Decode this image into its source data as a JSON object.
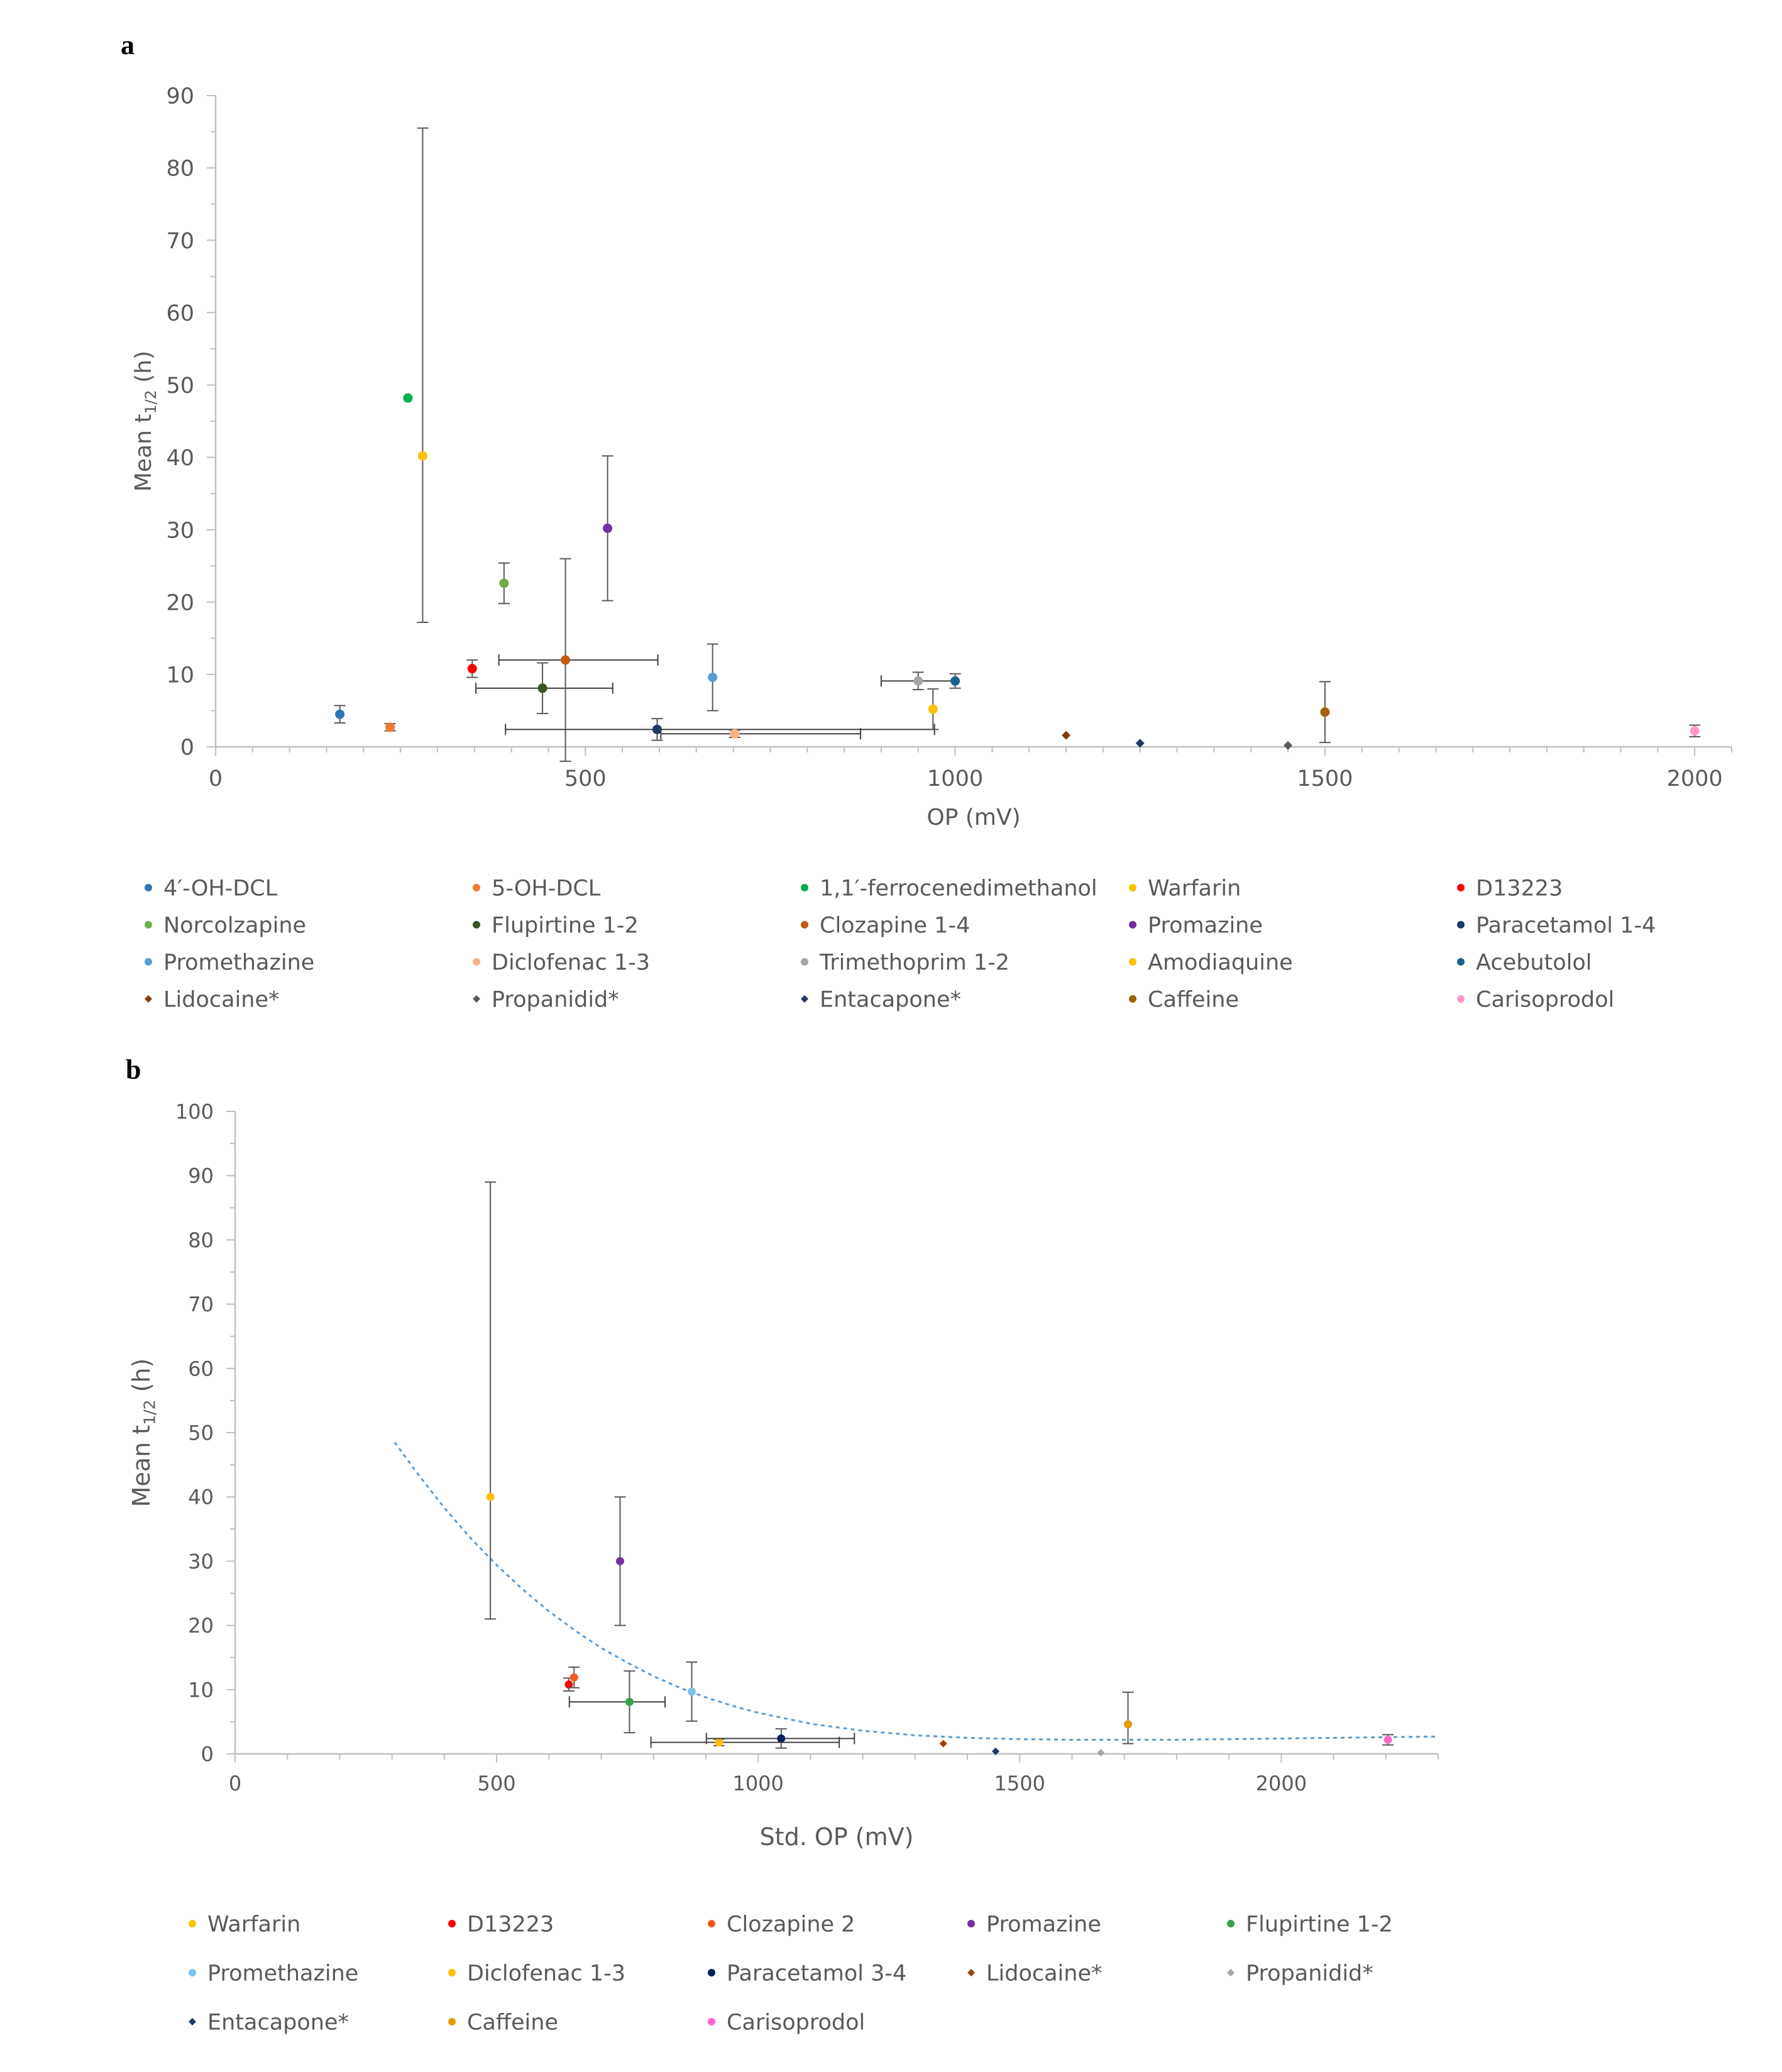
{
  "chart_data": [
    {
      "type": "scatter",
      "panel_label": "a",
      "title": "",
      "xlabel": "OP (mV)",
      "ylabel_main": "Mean t",
      "ylabel_sub": "1/2",
      "ylabel_unit": " (h)",
      "xlim": [
        0,
        2050
      ],
      "ylim": [
        0,
        90
      ],
      "xticks": [
        0,
        500,
        1000,
        1500,
        2000
      ],
      "xtick_labels": [
        "0",
        "500",
        "1000",
        "1500",
        "2000"
      ],
      "yticks": [
        0,
        10,
        20,
        30,
        40,
        50,
        60,
        70,
        80,
        90
      ],
      "ytick_labels": [
        "0",
        "10",
        "20",
        "30",
        "40",
        "50",
        "60",
        "70",
        "80",
        "90"
      ],
      "grid": false,
      "legend_position": "bottom",
      "series": [
        {
          "name": "4′-OH-DCL",
          "color": "#2e75b6",
          "marker": "circle",
          "x": 168,
          "y": 4.5,
          "yerr": 1.2
        },
        {
          "name": "5-OH-DCL",
          "color": "#ed7d31",
          "marker": "circle",
          "x": 236,
          "y": 2.7,
          "yerr": 0.5
        },
        {
          "name": "1,1′-ferrocenedimethanol",
          "color": "#00b050",
          "marker": "circle",
          "x": 260,
          "y": 48.2
        },
        {
          "name": "Warfarin",
          "color": "#ffc000",
          "marker": "circle",
          "x": 280,
          "y": 40.2,
          "yerr_low": 23,
          "yerr_high": 45.3
        },
        {
          "name": "D13223",
          "color": "#ff0000",
          "marker": "circle",
          "x": 347,
          "y": 10.8,
          "yerr": 1.2
        },
        {
          "name": "Norcolzapine",
          "color": "#70ad47",
          "marker": "circle",
          "x": 390,
          "y": 22.6,
          "yerr": 2.8
        },
        {
          "name": "Flupirtine 1-2",
          "color": "#375623",
          "marker": "circle",
          "x": 442,
          "y": 8.1,
          "yerr": 3.5,
          "xerr_low": 90,
          "xerr_high": 95
        },
        {
          "name": "Clozapine 1-4",
          "color": "#c55a11",
          "marker": "circle",
          "x": 473,
          "y": 12,
          "yerr": 14,
          "xerr_low": 90,
          "xerr_high": 125
        },
        {
          "name": "Promazine",
          "color": "#7030a0",
          "marker": "circle",
          "x": 530,
          "y": 30.2,
          "yerr": 10
        },
        {
          "name": "Paracetamol 1-4",
          "color": "#1f3864",
          "marker": "circle",
          "x": 597,
          "y": 2.4,
          "yerr": 1.5,
          "xerr_low": 205,
          "xerr_high": 375
        },
        {
          "name": "Promethazine",
          "color": "#5b9bd5",
          "marker": "circle",
          "x": 672,
          "y": 9.6,
          "yerr": 4.6
        },
        {
          "name": "Diclofenac 1-3",
          "color": "#f4b183",
          "marker": "circle",
          "x": 702,
          "y": 1.8,
          "yerr": 0.5,
          "xerr_low": 100,
          "xerr_high": 170
        },
        {
          "name": "Trimethoprim 1-2",
          "color": "#a5a5a5",
          "marker": "circle",
          "x": 950,
          "y": 9.1,
          "yerr": 1.2,
          "xerr_low": 50,
          "xerr_high": 50
        },
        {
          "name": "Amodiaquine",
          "color": "#ffc000",
          "marker": "circle",
          "x": 970,
          "y": 5.2,
          "yerr": 2.8
        },
        {
          "name": "Acebutolol",
          "color": "#1f618d",
          "marker": "circle",
          "x": 1000,
          "y": 9.1,
          "yerr": 1.0
        },
        {
          "name": "Lidocaine*",
          "color": "#843c0c",
          "marker": "diamond",
          "x": 1150,
          "y": 1.6
        },
        {
          "name": "Propanidid*",
          "color": "#595959",
          "marker": "diamond",
          "x": 1450,
          "y": 0.2
        },
        {
          "name": "Entacapone*",
          "color": "#203864",
          "marker": "diamond",
          "x": 1250,
          "y": 0.5
        },
        {
          "name": "Caffeine",
          "color": "#9c6500",
          "marker": "circle",
          "x": 1500,
          "y": 4.8,
          "yerr": 4.2
        },
        {
          "name": "Carisoprodol",
          "color": "#ff99cc",
          "marker": "circle",
          "x": 2000,
          "y": 2.2,
          "yerr": 0.8
        }
      ]
    },
    {
      "type": "scatter",
      "panel_label": "b",
      "title": "",
      "xlabel": "Std. OP (mV)",
      "ylabel_main": "Mean t",
      "ylabel_sub": "1/2",
      "ylabel_unit": " (h)",
      "xlim": [
        0,
        2300
      ],
      "ylim": [
        0,
        100
      ],
      "xticks": [
        0,
        500,
        1000,
        1500,
        2000
      ],
      "xtick_labels": [
        "0",
        "500",
        "1000",
        "1500",
        "2000"
      ],
      "yticks": [
        0,
        10,
        20,
        30,
        40,
        50,
        60,
        70,
        80,
        90,
        100
      ],
      "ytick_labels": [
        "0",
        "10",
        "20",
        "30",
        "40",
        "50",
        "60",
        "70",
        "80",
        "90",
        "100"
      ],
      "grid": false,
      "legend_position": "bottom",
      "trendline": {
        "color": "#5b9bd5",
        "style": "dotted",
        "x": [
          305,
          350,
          400,
          450,
          500,
          550,
          600,
          650,
          700,
          750,
          800,
          850,
          900,
          950,
          1000,
          1100,
          1200,
          1300,
          1400,
          1500,
          1600,
          1700,
          1800,
          1900,
          2000,
          2100,
          2200,
          2300
        ],
        "y": [
          48.5,
          43.5,
          38.3,
          33.6,
          29.4,
          25.6,
          22.2,
          19.2,
          16.5,
          14.2,
          12.1,
          10.3,
          8.8,
          7.5,
          6.4,
          4.7,
          3.6,
          2.9,
          2.5,
          2.3,
          2.2,
          2.2,
          2.2,
          2.3,
          2.4,
          2.5,
          2.6,
          2.7
        ]
      },
      "series": [
        {
          "name": "Warfarin",
          "color": "#ffc000",
          "marker": "circle",
          "x": 488,
          "y": 40,
          "yerr_low": 19,
          "yerr_high": 49
        },
        {
          "name": "D13223",
          "color": "#ff0000",
          "marker": "circle",
          "x": 638,
          "y": 10.8,
          "yerr": 1.0
        },
        {
          "name": "Clozapine 2",
          "color": "#f4591e",
          "marker": "circle",
          "x": 648,
          "y": 11.9,
          "yerr": 1.6
        },
        {
          "name": "Promazine",
          "color": "#7030a0",
          "marker": "circle",
          "x": 736,
          "y": 30,
          "yerr": 10
        },
        {
          "name": "Flupirtine 1-2",
          "color": "#38a04a",
          "marker": "circle",
          "x": 754,
          "y": 8.1,
          "yerr": 4.8,
          "xerr_low": 115,
          "xerr_high": 68
        },
        {
          "name": "Promethazine",
          "color": "#7ac3e8",
          "marker": "circle",
          "x": 873,
          "y": 9.7,
          "yerr": 4.6
        },
        {
          "name": "Diclofenac 1-3",
          "color": "#ffc000",
          "marker": "circle",
          "x": 925,
          "y": 1.8,
          "yerr": 0.5,
          "xerr_low": 130,
          "xerr_high": 230
        },
        {
          "name": "Paracetamol 3-4",
          "color": "#002060",
          "marker": "circle",
          "x": 1044,
          "y": 2.4,
          "yerr": 1.5,
          "xerr_low": 143,
          "xerr_high": 140
        },
        {
          "name": "Lidocaine*",
          "color": "#a0410d",
          "marker": "diamond",
          "x": 1354,
          "y": 1.6
        },
        {
          "name": "Propanidid*",
          "color": "#a5a5a5",
          "marker": "diamond",
          "x": 1655,
          "y": 0.2
        },
        {
          "name": "Entacapone*",
          "color": "#1f3864",
          "marker": "diamond",
          "x": 1454,
          "y": 0.4
        },
        {
          "name": "Caffeine",
          "color": "#e59b00",
          "marker": "circle",
          "x": 1707,
          "y": 4.6,
          "yerr_low": 3,
          "yerr_high": 5
        },
        {
          "name": "Carisoprodol",
          "color": "#ff66cc",
          "marker": "circle",
          "x": 2204,
          "y": 2.2,
          "yerr": 0.8
        }
      ]
    }
  ]
}
